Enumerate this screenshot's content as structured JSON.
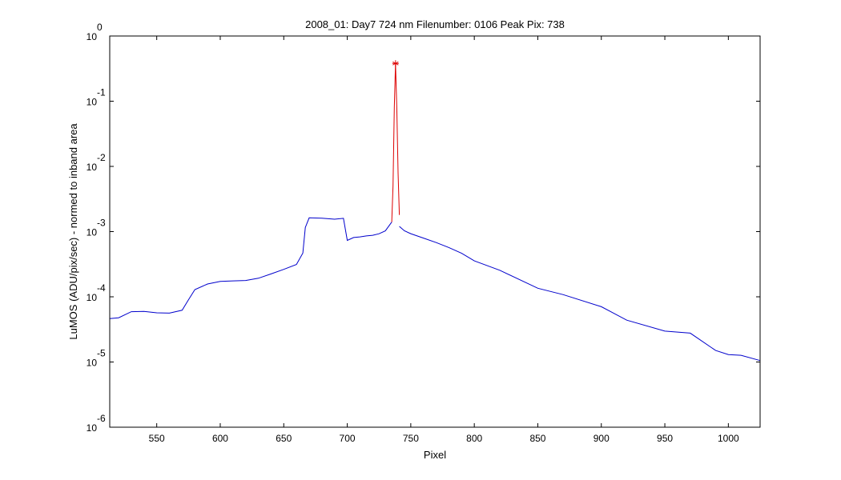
{
  "chart_data": {
    "type": "line",
    "title": "2008_01: Day7  724 nm  Filenumber: 0106 Peak Pix: 738",
    "xlabel": "Pixel",
    "ylabel": "LuMOS (ADU/pix/sec) - normed to inband area",
    "xlim": [
      513,
      1025
    ],
    "ylim": [
      1e-06,
      1
    ],
    "yscale": "log",
    "grid": false,
    "x_ticks": [
      550,
      600,
      650,
      700,
      750,
      800,
      850,
      900,
      950,
      1000
    ],
    "y_ticks": [
      {
        "base": "10",
        "exp": "0",
        "value": 1
      },
      {
        "base": "10",
        "exp": "-1",
        "value": 0.1
      },
      {
        "base": "10",
        "exp": "-2",
        "value": 0.01
      },
      {
        "base": "10",
        "exp": "-3",
        "value": 0.001
      },
      {
        "base": "10",
        "exp": "-4",
        "value": 0.0001
      },
      {
        "base": "10",
        "exp": "-5",
        "value": 1e-05
      },
      {
        "base": "10",
        "exp": "-6",
        "value": 1e-06
      }
    ],
    "series": [
      {
        "color": "#0000cc",
        "x": [
          513,
          520,
          530,
          540,
          550,
          560,
          570,
          575,
          580,
          590,
          600,
          610,
          620,
          630,
          640,
          650,
          660,
          665,
          667,
          670,
          680,
          690,
          697,
          700,
          705,
          710,
          715,
          720,
          725,
          730,
          735
        ],
        "y": [
          5.2e-05,
          4.8e-05,
          5.4e-05,
          5.5e-05,
          5.8e-05,
          6.2e-05,
          6.6e-05,
          9.5e-05,
          0.000135,
          0.00015,
          0.00016,
          0.000172,
          0.000188,
          0.000205,
          0.000225,
          0.00025,
          0.0003,
          0.00045,
          0.00115,
          0.00155,
          0.00156,
          0.00158,
          0.00165,
          0.00075,
          0.00083,
          0.00085,
          0.00088,
          0.0009,
          0.00095,
          0.00105,
          0.0014
        ]
      },
      {
        "color": "#dd0000",
        "x": [
          735,
          736,
          737,
          738,
          739,
          740,
          741
        ],
        "y": [
          0.0014,
          0.005,
          0.08,
          0.38,
          0.08,
          0.008,
          0.0018
        ]
      },
      {
        "color": "#0000cc",
        "x": [
          741,
          745,
          750,
          760,
          770,
          780,
          790,
          800,
          820,
          850,
          870,
          900,
          920,
          950,
          970,
          990,
          1000,
          1010,
          1025
        ],
        "y": [
          0.0012,
          0.00105,
          0.00095,
          0.00082,
          0.00068,
          0.00055,
          0.00045,
          0.00036,
          0.00025,
          0.00014,
          0.000105,
          6.5e-05,
          4.8e-05,
          3.3e-05,
          2.5e-05,
          1.7e-05,
          1.4e-05,
          1.2e-05,
          1e-05
        ]
      }
    ],
    "markers": [
      {
        "x": 738,
        "y": 0.38,
        "symbol": "*",
        "color": "#dd0000"
      }
    ]
  }
}
